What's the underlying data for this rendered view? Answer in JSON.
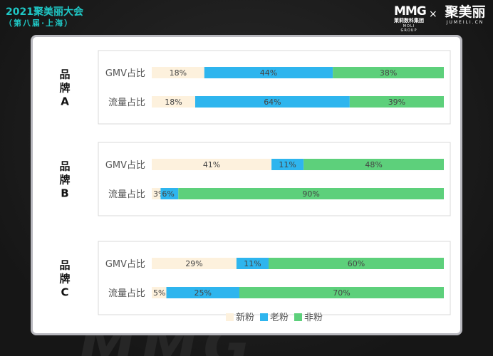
{
  "header": {
    "title": "2021聚美丽大会",
    "subtitle": "（第八届·上海）"
  },
  "logos": {
    "mmg_mark": "MMG",
    "mmg_cn": "莱莉数科集团",
    "mmg_en": "MOLI GROUP",
    "times": "×",
    "jml_cn": "聚美丽",
    "jml_en": "JUMEILI.CN"
  },
  "colors": {
    "新粉": "#fdf1dd",
    "老粉": "#2eb5ee",
    "非粉": "#5dd07b",
    "panel_border": "#b8b8be",
    "group_border": "#d8d8d8",
    "accent": "#1fc7c5"
  },
  "chart_data": {
    "type": "bar",
    "orientation": "horizontal",
    "stacked": true,
    "groups": [
      {
        "label": "品牌A",
        "label_lines": [
          "品",
          "牌",
          "A"
        ],
        "rows": [
          {
            "label": "GMV占比",
            "values": [
              18,
              44,
              38
            ]
          },
          {
            "label": "流量占比",
            "values": [
              18,
              64,
              39
            ]
          }
        ]
      },
      {
        "label": "品牌B",
        "label_lines": [
          "品",
          "牌",
          "B"
        ],
        "rows": [
          {
            "label": "GMV占比",
            "values": [
              41,
              11,
              48
            ]
          },
          {
            "label": "流量占比",
            "values": [
              3,
              6,
              90
            ]
          }
        ]
      },
      {
        "label": "品牌C",
        "label_lines": [
          "品",
          "牌",
          "C"
        ],
        "rows": [
          {
            "label": "GMV占比",
            "values": [
              29,
              11,
              60
            ]
          },
          {
            "label": "流量占比",
            "values": [
              5,
              25,
              70
            ]
          }
        ]
      }
    ],
    "series": [
      {
        "name": "新粉",
        "color": "#fdf1dd"
      },
      {
        "name": "老粉",
        "color": "#2eb5ee"
      },
      {
        "name": "非粉",
        "color": "#5dd07b"
      }
    ],
    "value_suffix": "%",
    "legend_position": "bottom-center",
    "grid": false
  }
}
